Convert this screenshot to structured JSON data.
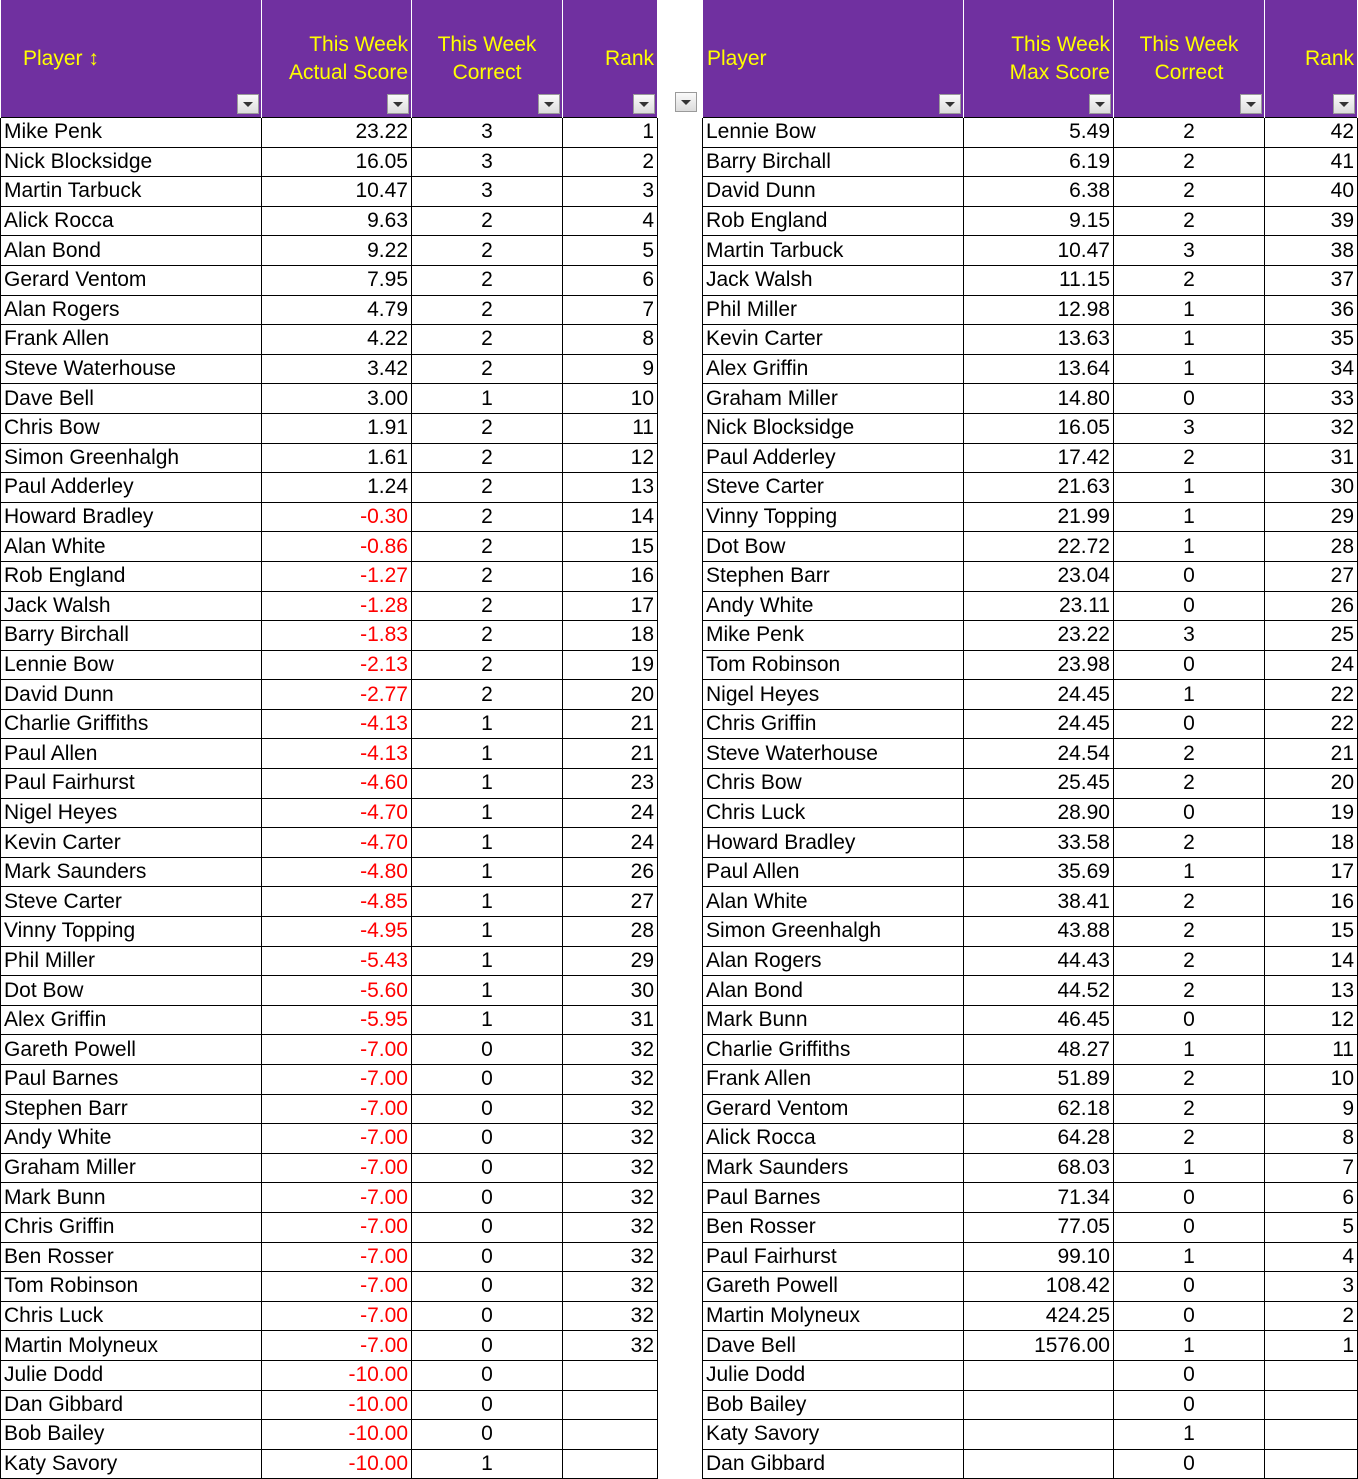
{
  "colors": {
    "header_bg": "#7030A0",
    "header_text": "#FFFF00",
    "negative_text": "#FF0000"
  },
  "left_table": {
    "headers": {
      "player": "Player ↕",
      "score_line1": "This Week",
      "score_line2": "Actual Score",
      "correct_line1": "This Week",
      "correct_line2": "Correct",
      "rank": "Rank"
    },
    "rows": [
      {
        "player": "Mike Penk",
        "score": "23.22",
        "correct": "3",
        "rank": "1"
      },
      {
        "player": "Nick Blocksidge",
        "score": "16.05",
        "correct": "3",
        "rank": "2"
      },
      {
        "player": "Martin Tarbuck",
        "score": "10.47",
        "correct": "3",
        "rank": "3"
      },
      {
        "player": "Alick Rocca",
        "score": "9.63",
        "correct": "2",
        "rank": "4"
      },
      {
        "player": "Alan Bond",
        "score": "9.22",
        "correct": "2",
        "rank": "5"
      },
      {
        "player": "Gerard Ventom",
        "score": "7.95",
        "correct": "2",
        "rank": "6"
      },
      {
        "player": "Alan Rogers",
        "score": "4.79",
        "correct": "2",
        "rank": "7"
      },
      {
        "player": "Frank Allen",
        "score": "4.22",
        "correct": "2",
        "rank": "8"
      },
      {
        "player": "Steve Waterhouse",
        "score": "3.42",
        "correct": "2",
        "rank": "9"
      },
      {
        "player": "Dave Bell",
        "score": "3.00",
        "correct": "1",
        "rank": "10"
      },
      {
        "player": "Chris Bow",
        "score": "1.91",
        "correct": "2",
        "rank": "11"
      },
      {
        "player": "Simon Greenhalgh",
        "score": "1.61",
        "correct": "2",
        "rank": "12"
      },
      {
        "player": "Paul Adderley",
        "score": "1.24",
        "correct": "2",
        "rank": "13"
      },
      {
        "player": "Howard Bradley",
        "score": "-0.30",
        "correct": "2",
        "rank": "14"
      },
      {
        "player": "Alan White",
        "score": "-0.86",
        "correct": "2",
        "rank": "15"
      },
      {
        "player": "Rob England",
        "score": "-1.27",
        "correct": "2",
        "rank": "16"
      },
      {
        "player": "Jack Walsh",
        "score": "-1.28",
        "correct": "2",
        "rank": "17"
      },
      {
        "player": "Barry Birchall",
        "score": "-1.83",
        "correct": "2",
        "rank": "18"
      },
      {
        "player": "Lennie Bow",
        "score": "-2.13",
        "correct": "2",
        "rank": "19"
      },
      {
        "player": "David Dunn",
        "score": "-2.77",
        "correct": "2",
        "rank": "20"
      },
      {
        "player": "Charlie Griffiths",
        "score": "-4.13",
        "correct": "1",
        "rank": "21"
      },
      {
        "player": "Paul Allen",
        "score": "-4.13",
        "correct": "1",
        "rank": "21"
      },
      {
        "player": "Paul Fairhurst",
        "score": "-4.60",
        "correct": "1",
        "rank": "23"
      },
      {
        "player": "Nigel Heyes",
        "score": "-4.70",
        "correct": "1",
        "rank": "24"
      },
      {
        "player": "Kevin Carter",
        "score": "-4.70",
        "correct": "1",
        "rank": "24"
      },
      {
        "player": "Mark Saunders",
        "score": "-4.80",
        "correct": "1",
        "rank": "26"
      },
      {
        "player": "Steve Carter",
        "score": "-4.85",
        "correct": "1",
        "rank": "27"
      },
      {
        "player": "Vinny Topping",
        "score": "-4.95",
        "correct": "1",
        "rank": "28"
      },
      {
        "player": "Phil Miller",
        "score": "-5.43",
        "correct": "1",
        "rank": "29"
      },
      {
        "player": "Dot Bow",
        "score": "-5.60",
        "correct": "1",
        "rank": "30"
      },
      {
        "player": "Alex Griffin",
        "score": "-5.95",
        "correct": "1",
        "rank": "31"
      },
      {
        "player": "Gareth Powell",
        "score": "-7.00",
        "correct": "0",
        "rank": "32"
      },
      {
        "player": "Paul Barnes",
        "score": "-7.00",
        "correct": "0",
        "rank": "32"
      },
      {
        "player": "Stephen Barr",
        "score": "-7.00",
        "correct": "0",
        "rank": "32"
      },
      {
        "player": "Andy White",
        "score": "-7.00",
        "correct": "0",
        "rank": "32"
      },
      {
        "player": "Graham Miller",
        "score": "-7.00",
        "correct": "0",
        "rank": "32"
      },
      {
        "player": "Mark Bunn",
        "score": "-7.00",
        "correct": "0",
        "rank": "32"
      },
      {
        "player": "Chris Griffin",
        "score": "-7.00",
        "correct": "0",
        "rank": "32"
      },
      {
        "player": "Ben Rosser",
        "score": "-7.00",
        "correct": "0",
        "rank": "32"
      },
      {
        "player": "Tom Robinson",
        "score": "-7.00",
        "correct": "0",
        "rank": "32"
      },
      {
        "player": "Chris Luck",
        "score": "-7.00",
        "correct": "0",
        "rank": "32"
      },
      {
        "player": "Martin Molyneux",
        "score": "-7.00",
        "correct": "0",
        "rank": "32"
      },
      {
        "player": "Julie Dodd",
        "score": "-10.00",
        "correct": "0",
        "rank": ""
      },
      {
        "player": "Dan Gibbard",
        "score": "-10.00",
        "correct": "0",
        "rank": ""
      },
      {
        "player": "Bob Bailey",
        "score": "-10.00",
        "correct": "0",
        "rank": ""
      },
      {
        "player": "Katy Savory",
        "score": "-10.00",
        "correct": "1",
        "rank": ""
      }
    ]
  },
  "right_table": {
    "headers": {
      "player": "Player",
      "score_line1": "This Week",
      "score_line2": "Max Score",
      "correct_line1": "This Week",
      "correct_line2": "Correct",
      "rank": "Rank"
    },
    "rows": [
      {
        "player": "Lennie Bow",
        "score": "5.49",
        "correct": "2",
        "rank": "42"
      },
      {
        "player": "Barry Birchall",
        "score": "6.19",
        "correct": "2",
        "rank": "41"
      },
      {
        "player": "David Dunn",
        "score": "6.38",
        "correct": "2",
        "rank": "40"
      },
      {
        "player": "Rob England",
        "score": "9.15",
        "correct": "2",
        "rank": "39"
      },
      {
        "player": "Martin Tarbuck",
        "score": "10.47",
        "correct": "3",
        "rank": "38"
      },
      {
        "player": "Jack Walsh",
        "score": "11.15",
        "correct": "2",
        "rank": "37"
      },
      {
        "player": "Phil Miller",
        "score": "12.98",
        "correct": "1",
        "rank": "36"
      },
      {
        "player": "Kevin Carter",
        "score": "13.63",
        "correct": "1",
        "rank": "35"
      },
      {
        "player": "Alex Griffin",
        "score": "13.64",
        "correct": "1",
        "rank": "34"
      },
      {
        "player": "Graham Miller",
        "score": "14.80",
        "correct": "0",
        "rank": "33"
      },
      {
        "player": "Nick Blocksidge",
        "score": "16.05",
        "correct": "3",
        "rank": "32"
      },
      {
        "player": "Paul Adderley",
        "score": "17.42",
        "correct": "2",
        "rank": "31"
      },
      {
        "player": "Steve Carter",
        "score": "21.63",
        "correct": "1",
        "rank": "30"
      },
      {
        "player": "Vinny Topping",
        "score": "21.99",
        "correct": "1",
        "rank": "29"
      },
      {
        "player": "Dot Bow",
        "score": "22.72",
        "correct": "1",
        "rank": "28"
      },
      {
        "player": "Stephen Barr",
        "score": "23.04",
        "correct": "0",
        "rank": "27"
      },
      {
        "player": "Andy White",
        "score": "23.11",
        "correct": "0",
        "rank": "26"
      },
      {
        "player": "Mike Penk",
        "score": "23.22",
        "correct": "3",
        "rank": "25"
      },
      {
        "player": "Tom Robinson",
        "score": "23.98",
        "correct": "0",
        "rank": "24"
      },
      {
        "player": "Nigel Heyes",
        "score": "24.45",
        "correct": "1",
        "rank": "22"
      },
      {
        "player": "Chris Griffin",
        "score": "24.45",
        "correct": "0",
        "rank": "22"
      },
      {
        "player": "Steve Waterhouse",
        "score": "24.54",
        "correct": "2",
        "rank": "21"
      },
      {
        "player": "Chris Bow",
        "score": "25.45",
        "correct": "2",
        "rank": "20"
      },
      {
        "player": "Chris Luck",
        "score": "28.90",
        "correct": "0",
        "rank": "19"
      },
      {
        "player": "Howard Bradley",
        "score": "33.58",
        "correct": "2",
        "rank": "18"
      },
      {
        "player": "Paul Allen",
        "score": "35.69",
        "correct": "1",
        "rank": "17"
      },
      {
        "player": "Alan White",
        "score": "38.41",
        "correct": "2",
        "rank": "16"
      },
      {
        "player": "Simon Greenhalgh",
        "score": "43.88",
        "correct": "2",
        "rank": "15"
      },
      {
        "player": "Alan Rogers",
        "score": "44.43",
        "correct": "2",
        "rank": "14"
      },
      {
        "player": "Alan Bond",
        "score": "44.52",
        "correct": "2",
        "rank": "13"
      },
      {
        "player": "Mark Bunn",
        "score": "46.45",
        "correct": "0",
        "rank": "12"
      },
      {
        "player": "Charlie Griffiths",
        "score": "48.27",
        "correct": "1",
        "rank": "11"
      },
      {
        "player": "Frank Allen",
        "score": "51.89",
        "correct": "2",
        "rank": "10"
      },
      {
        "player": "Gerard Ventom",
        "score": "62.18",
        "correct": "2",
        "rank": "9"
      },
      {
        "player": "Alick Rocca",
        "score": "64.28",
        "correct": "2",
        "rank": "8"
      },
      {
        "player": "Mark Saunders",
        "score": "68.03",
        "correct": "1",
        "rank": "7"
      },
      {
        "player": "Paul Barnes",
        "score": "71.34",
        "correct": "0",
        "rank": "6"
      },
      {
        "player": "Ben Rosser",
        "score": "77.05",
        "correct": "0",
        "rank": "5"
      },
      {
        "player": "Paul Fairhurst",
        "score": "99.10",
        "correct": "1",
        "rank": "4"
      },
      {
        "player": "Gareth Powell",
        "score": "108.42",
        "correct": "0",
        "rank": "3"
      },
      {
        "player": "Martin Molyneux",
        "score": "424.25",
        "correct": "0",
        "rank": "2"
      },
      {
        "player": "Dave Bell",
        "score": "1576.00",
        "correct": "1",
        "rank": "1"
      },
      {
        "player": "Julie Dodd",
        "score": "",
        "correct": "0",
        "rank": ""
      },
      {
        "player": "Bob Bailey",
        "score": "",
        "correct": "0",
        "rank": ""
      },
      {
        "player": "Katy Savory",
        "score": "",
        "correct": "1",
        "rank": ""
      },
      {
        "player": "Dan Gibbard",
        "score": "",
        "correct": "0",
        "rank": ""
      }
    ]
  }
}
